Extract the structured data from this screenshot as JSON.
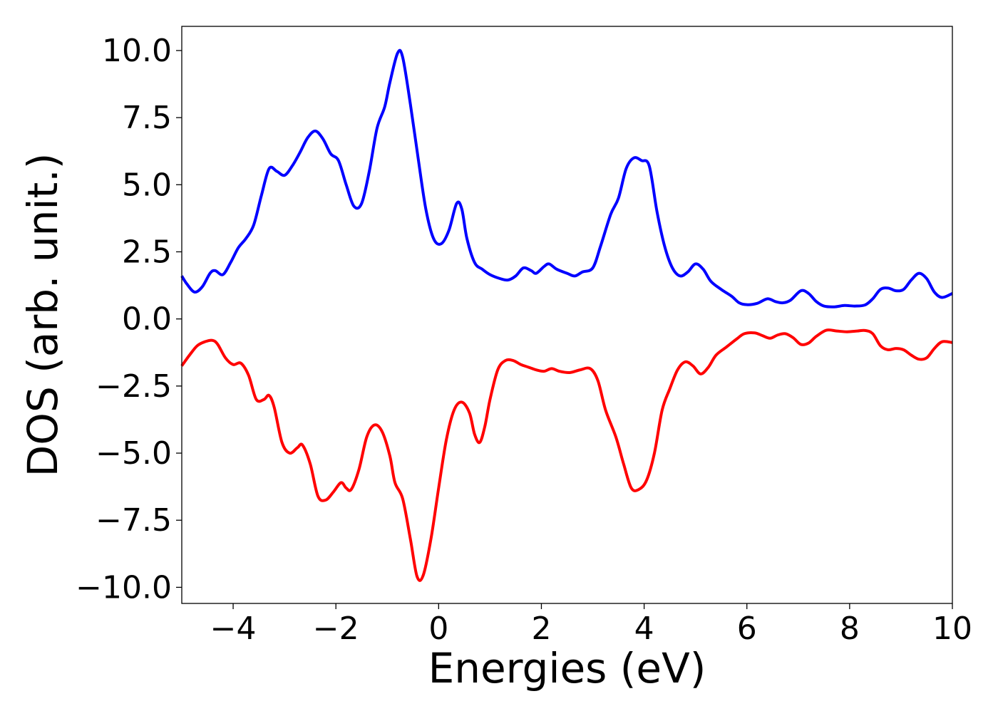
{
  "chart_data": {
    "type": "line",
    "title": "",
    "xlabel": "Energies (eV)",
    "ylabel": "DOS (arb. unit.)",
    "xlim": [
      -5,
      10
    ],
    "ylim": [
      -10.6,
      10.9
    ],
    "grid": false,
    "legend": "none",
    "x_ticks": [
      {
        "value": -4,
        "label": "−4"
      },
      {
        "value": -2,
        "label": "−2"
      },
      {
        "value": 0,
        "label": "0"
      },
      {
        "value": 2,
        "label": "2"
      },
      {
        "value": 4,
        "label": "4"
      },
      {
        "value": 6,
        "label": "6"
      },
      {
        "value": 8,
        "label": "8"
      },
      {
        "value": 10,
        "label": "10"
      }
    ],
    "y_ticks": [
      {
        "value": 10,
        "label": "10.0"
      },
      {
        "value": 7.5,
        "label": "7.5"
      },
      {
        "value": 5,
        "label": "5.0"
      },
      {
        "value": 2.5,
        "label": "2.5"
      },
      {
        "value": 0,
        "label": "0.0"
      },
      {
        "value": -2.5,
        "label": "−2.5"
      },
      {
        "value": -5,
        "label": "−5.0"
      },
      {
        "value": -7.5,
        "label": "−7.5"
      },
      {
        "value": -10,
        "label": "−10.0"
      }
    ],
    "series": [
      {
        "color": "#0000ff",
        "points": [
          [
            -5.0,
            1.6
          ],
          [
            -4.9,
            1.3
          ],
          [
            -4.75,
            1.0
          ],
          [
            -4.6,
            1.2
          ],
          [
            -4.45,
            1.7
          ],
          [
            -4.35,
            1.8
          ],
          [
            -4.2,
            1.65
          ],
          [
            -4.05,
            2.1
          ],
          [
            -3.9,
            2.65
          ],
          [
            -3.75,
            3.0
          ],
          [
            -3.6,
            3.5
          ],
          [
            -3.45,
            4.6
          ],
          [
            -3.3,
            5.6
          ],
          [
            -3.15,
            5.5
          ],
          [
            -3.0,
            5.35
          ],
          [
            -2.85,
            5.7
          ],
          [
            -2.7,
            6.2
          ],
          [
            -2.55,
            6.75
          ],
          [
            -2.4,
            7.0
          ],
          [
            -2.25,
            6.7
          ],
          [
            -2.1,
            6.15
          ],
          [
            -1.95,
            5.9
          ],
          [
            -1.8,
            5.0
          ],
          [
            -1.65,
            4.2
          ],
          [
            -1.5,
            4.3
          ],
          [
            -1.35,
            5.5
          ],
          [
            -1.2,
            7.1
          ],
          [
            -1.05,
            7.9
          ],
          [
            -0.95,
            8.8
          ],
          [
            -0.8,
            9.9
          ],
          [
            -0.7,
            9.75
          ],
          [
            -0.55,
            8.0
          ],
          [
            -0.4,
            6.0
          ],
          [
            -0.25,
            4.1
          ],
          [
            -0.1,
            3.0
          ],
          [
            0.05,
            2.8
          ],
          [
            0.2,
            3.3
          ],
          [
            0.35,
            4.3
          ],
          [
            0.45,
            4.1
          ],
          [
            0.55,
            3.0
          ],
          [
            0.7,
            2.1
          ],
          [
            0.85,
            1.85
          ],
          [
            1.0,
            1.65
          ],
          [
            1.2,
            1.5
          ],
          [
            1.35,
            1.45
          ],
          [
            1.5,
            1.6
          ],
          [
            1.65,
            1.9
          ],
          [
            1.8,
            1.8
          ],
          [
            1.9,
            1.7
          ],
          [
            2.05,
            1.95
          ],
          [
            2.15,
            2.05
          ],
          [
            2.3,
            1.85
          ],
          [
            2.5,
            1.7
          ],
          [
            2.65,
            1.6
          ],
          [
            2.8,
            1.75
          ],
          [
            3.0,
            1.9
          ],
          [
            3.15,
            2.7
          ],
          [
            3.35,
            3.9
          ],
          [
            3.5,
            4.5
          ],
          [
            3.65,
            5.6
          ],
          [
            3.8,
            6.0
          ],
          [
            3.95,
            5.9
          ],
          [
            4.1,
            5.7
          ],
          [
            4.25,
            4.0
          ],
          [
            4.4,
            2.7
          ],
          [
            4.55,
            1.9
          ],
          [
            4.7,
            1.6
          ],
          [
            4.85,
            1.75
          ],
          [
            5.0,
            2.05
          ],
          [
            5.15,
            1.85
          ],
          [
            5.3,
            1.4
          ],
          [
            5.5,
            1.1
          ],
          [
            5.7,
            0.85
          ],
          [
            5.85,
            0.6
          ],
          [
            6.0,
            0.53
          ],
          [
            6.2,
            0.58
          ],
          [
            6.4,
            0.75
          ],
          [
            6.55,
            0.65
          ],
          [
            6.7,
            0.6
          ],
          [
            6.85,
            0.7
          ],
          [
            7.05,
            1.05
          ],
          [
            7.2,
            0.95
          ],
          [
            7.35,
            0.65
          ],
          [
            7.5,
            0.48
          ],
          [
            7.7,
            0.45
          ],
          [
            7.9,
            0.5
          ],
          [
            8.1,
            0.48
          ],
          [
            8.3,
            0.52
          ],
          [
            8.45,
            0.75
          ],
          [
            8.6,
            1.1
          ],
          [
            8.75,
            1.15
          ],
          [
            8.9,
            1.05
          ],
          [
            9.05,
            1.1
          ],
          [
            9.2,
            1.45
          ],
          [
            9.35,
            1.7
          ],
          [
            9.5,
            1.5
          ],
          [
            9.65,
            1.0
          ],
          [
            9.8,
            0.8
          ],
          [
            10.0,
            0.95
          ]
        ]
      },
      {
        "color": "#ff0000",
        "points": [
          [
            -5.0,
            -1.75
          ],
          [
            -4.85,
            -1.35
          ],
          [
            -4.7,
            -1.0
          ],
          [
            -4.55,
            -0.85
          ],
          [
            -4.4,
            -0.8
          ],
          [
            -4.3,
            -0.95
          ],
          [
            -4.15,
            -1.45
          ],
          [
            -4.0,
            -1.7
          ],
          [
            -3.85,
            -1.65
          ],
          [
            -3.7,
            -2.1
          ],
          [
            -3.55,
            -3.0
          ],
          [
            -3.4,
            -3.0
          ],
          [
            -3.3,
            -2.85
          ],
          [
            -3.2,
            -3.3
          ],
          [
            -3.05,
            -4.6
          ],
          [
            -2.9,
            -5.0
          ],
          [
            -2.75,
            -4.8
          ],
          [
            -2.65,
            -4.7
          ],
          [
            -2.5,
            -5.4
          ],
          [
            -2.35,
            -6.6
          ],
          [
            -2.2,
            -6.75
          ],
          [
            -2.05,
            -6.45
          ],
          [
            -1.9,
            -6.1
          ],
          [
            -1.8,
            -6.3
          ],
          [
            -1.7,
            -6.35
          ],
          [
            -1.55,
            -5.6
          ],
          [
            -1.4,
            -4.4
          ],
          [
            -1.25,
            -3.95
          ],
          [
            -1.1,
            -4.2
          ],
          [
            -0.95,
            -5.1
          ],
          [
            -0.85,
            -6.1
          ],
          [
            -0.7,
            -6.7
          ],
          [
            -0.55,
            -8.2
          ],
          [
            -0.42,
            -9.6
          ],
          [
            -0.3,
            -9.55
          ],
          [
            -0.15,
            -8.2
          ],
          [
            0.0,
            -6.3
          ],
          [
            0.15,
            -4.5
          ],
          [
            0.3,
            -3.4
          ],
          [
            0.45,
            -3.1
          ],
          [
            0.6,
            -3.5
          ],
          [
            0.7,
            -4.3
          ],
          [
            0.8,
            -4.6
          ],
          [
            0.9,
            -4.0
          ],
          [
            1.0,
            -3.0
          ],
          [
            1.15,
            -1.9
          ],
          [
            1.3,
            -1.55
          ],
          [
            1.45,
            -1.55
          ],
          [
            1.6,
            -1.7
          ],
          [
            1.75,
            -1.8
          ],
          [
            1.9,
            -1.9
          ],
          [
            2.05,
            -1.95
          ],
          [
            2.2,
            -1.85
          ],
          [
            2.35,
            -1.95
          ],
          [
            2.55,
            -2.0
          ],
          [
            2.75,
            -1.9
          ],
          [
            2.95,
            -1.85
          ],
          [
            3.1,
            -2.3
          ],
          [
            3.25,
            -3.4
          ],
          [
            3.45,
            -4.4
          ],
          [
            3.6,
            -5.4
          ],
          [
            3.75,
            -6.3
          ],
          [
            3.9,
            -6.35
          ],
          [
            4.05,
            -6.0
          ],
          [
            4.2,
            -5.0
          ],
          [
            4.35,
            -3.4
          ],
          [
            4.5,
            -2.6
          ],
          [
            4.65,
            -1.9
          ],
          [
            4.8,
            -1.6
          ],
          [
            4.95,
            -1.75
          ],
          [
            5.1,
            -2.05
          ],
          [
            5.25,
            -1.8
          ],
          [
            5.4,
            -1.35
          ],
          [
            5.6,
            -1.05
          ],
          [
            5.8,
            -0.75
          ],
          [
            5.95,
            -0.55
          ],
          [
            6.15,
            -0.52
          ],
          [
            6.3,
            -0.62
          ],
          [
            6.45,
            -0.72
          ],
          [
            6.6,
            -0.6
          ],
          [
            6.75,
            -0.55
          ],
          [
            6.9,
            -0.7
          ],
          [
            7.05,
            -0.95
          ],
          [
            7.2,
            -0.9
          ],
          [
            7.35,
            -0.65
          ],
          [
            7.55,
            -0.42
          ],
          [
            7.75,
            -0.45
          ],
          [
            7.95,
            -0.48
          ],
          [
            8.15,
            -0.45
          ],
          [
            8.3,
            -0.43
          ],
          [
            8.45,
            -0.55
          ],
          [
            8.6,
            -1.0
          ],
          [
            8.75,
            -1.15
          ],
          [
            8.9,
            -1.1
          ],
          [
            9.05,
            -1.15
          ],
          [
            9.2,
            -1.35
          ],
          [
            9.35,
            -1.5
          ],
          [
            9.5,
            -1.45
          ],
          [
            9.65,
            -1.1
          ],
          [
            9.8,
            -0.85
          ],
          [
            10.0,
            -0.88
          ]
        ]
      }
    ]
  }
}
